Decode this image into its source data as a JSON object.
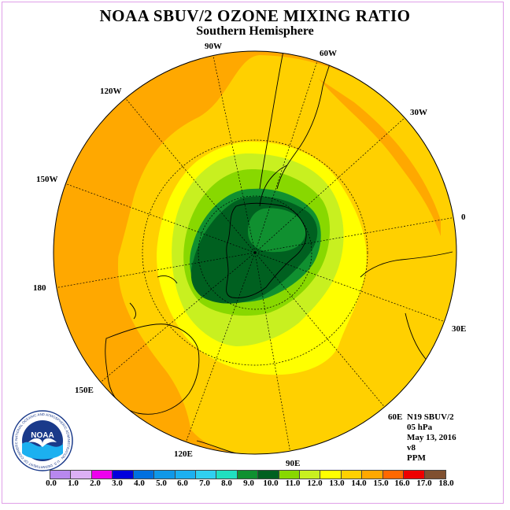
{
  "header": {
    "title": "NOAA SBUV/2 OZONE MIXING RATIO",
    "subtitle": "Southern Hemisphere"
  },
  "map": {
    "projection": "polar-stereographic-south",
    "longitude_labels": [
      "90W",
      "60W",
      "30W",
      "0",
      "30E",
      "60E",
      "90E",
      "120E",
      "150E",
      "180",
      "150W",
      "120W"
    ]
  },
  "info": {
    "satellite": "N19 SBUV/2",
    "level": "05 hPa",
    "date": "May 13, 2016",
    "version": "v8",
    "units": "PPM"
  },
  "logo": {
    "text": "NOAA",
    "ring_text": "NATIONAL OCEANIC AND ATMOSPHERIC ADMINISTRATION · U.S. DEPARTMENT OF COMMERCE"
  },
  "colorbar": {
    "ticks": [
      "0.0",
      "1.0",
      "2.0",
      "3.0",
      "4.0",
      "5.0",
      "6.0",
      "7.0",
      "8.0",
      "9.0",
      "10.0",
      "11.0",
      "12.0",
      "13.0",
      "14.0",
      "15.0",
      "16.0",
      "17.0",
      "18.0"
    ],
    "colors": [
      "#b888ee",
      "#dcb0f4",
      "#ee00ee",
      "#0000dd",
      "#0070e0",
      "#1098e8",
      "#1cb0f0",
      "#30d0f0",
      "#20e0c0",
      "#109030",
      "#006020",
      "#88d800",
      "#c8f020",
      "#ffff00",
      "#ffd000",
      "#ffa800",
      "#ff6800",
      "#ee0000",
      "#805030"
    ]
  },
  "colors": {
    "inner_core": "#006020",
    "core": "#109030",
    "inner_ring": "#88d800",
    "light_ring": "#c8f020",
    "yellow": "#ffff00",
    "gold": "#ffd000",
    "orange": "#ffa800"
  }
}
